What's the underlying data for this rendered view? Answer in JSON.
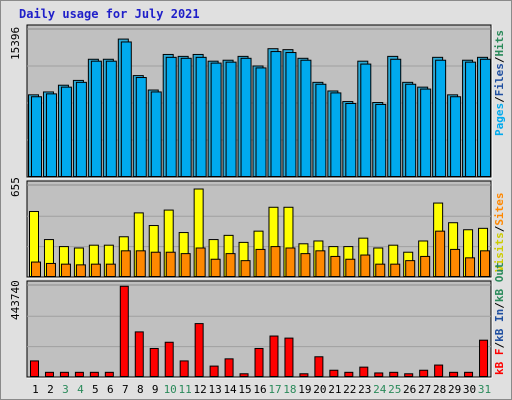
{
  "title": "Daily usage for July 2021",
  "colors": {
    "background": "#e0e0e0",
    "plot_bg": "#c0c0c0",
    "pages": "#00aaee",
    "hits": "#44bbcc",
    "visits": "#ffff00",
    "sites": "#ff8800",
    "kbytes": "#ff0000",
    "weekend_label": "#2a8a5a",
    "weekday_label": "#000000",
    "title": "#1f1fc9"
  },
  "chart_data": [
    {
      "type": "bar",
      "panel": "top",
      "max_label": "15396",
      "ylim": [
        0,
        15396
      ],
      "legend": [
        {
          "text": "Pages",
          "color": "#00aaee"
        },
        {
          "text": "Files",
          "color": "#1f4fa0"
        },
        {
          "text": "Hits",
          "color": "#2a8a5a"
        }
      ],
      "categories": [
        "1",
        "2",
        "3",
        "4",
        "5",
        "6",
        "7",
        "8",
        "9",
        "10",
        "11",
        "12",
        "13",
        "14",
        "15",
        "16",
        "17",
        "18",
        "19",
        "20",
        "21",
        "22",
        "23",
        "24",
        "25",
        "26",
        "27",
        "28",
        "29",
        "30",
        "31"
      ],
      "series": [
        {
          "name": "Hits",
          "values": [
            8600,
            8900,
            9600,
            10100,
            12300,
            12300,
            14400,
            10600,
            9100,
            12800,
            12600,
            12800,
            12100,
            12200,
            12600,
            11600,
            13400,
            13300,
            12400,
            9900,
            9000,
            7900,
            12100,
            7800,
            12600,
            9900,
            9400,
            12500,
            8600,
            12200,
            12500
          ]
        },
        {
          "name": "Pages",
          "values": [
            8400,
            8700,
            9400,
            9900,
            12100,
            12100,
            14100,
            10400,
            8900,
            12500,
            12400,
            12500,
            11900,
            12000,
            12400,
            11400,
            13100,
            13000,
            12200,
            9700,
            8800,
            7700,
            11800,
            7600,
            12300,
            9700,
            9200,
            12200,
            8400,
            12000,
            12300
          ]
        }
      ]
    },
    {
      "type": "bar",
      "panel": "middle",
      "max_label": "655",
      "ylim": [
        0,
        655
      ],
      "legend": [
        {
          "text": "Visits",
          "color": "#cccc00"
        },
        {
          "text": "Sites",
          "color": "#ff8800"
        }
      ],
      "categories": [
        "1",
        "2",
        "3",
        "4",
        "5",
        "6",
        "7",
        "8",
        "9",
        "10",
        "11",
        "12",
        "13",
        "14",
        "15",
        "16",
        "17",
        "18",
        "19",
        "20",
        "21",
        "22",
        "23",
        "24",
        "25",
        "26",
        "27",
        "28",
        "29",
        "30",
        "31"
      ],
      "series": [
        {
          "name": "Visits",
          "values": [
            470,
            270,
            220,
            210,
            230,
            230,
            290,
            460,
            370,
            480,
            320,
            630,
            270,
            300,
            250,
            330,
            500,
            500,
            240,
            260,
            220,
            220,
            280,
            210,
            230,
            180,
            260,
            530,
            390,
            340,
            350
          ]
        },
        {
          "name": "Sites",
          "values": [
            110,
            100,
            95,
            90,
            95,
            95,
            190,
            190,
            180,
            180,
            170,
            210,
            130,
            170,
            120,
            200,
            220,
            210,
            170,
            190,
            150,
            130,
            160,
            95,
            95,
            120,
            150,
            330,
            200,
            140,
            190
          ]
        }
      ]
    },
    {
      "type": "bar",
      "panel": "bottom",
      "max_label": "443740",
      "ylim": [
        0,
        443740
      ],
      "legend": [
        {
          "text": "kB F",
          "color": "#ff0000"
        },
        {
          "text": "kB In",
          "color": "#1f4fa0"
        },
        {
          "text": "kB Out",
          "color": "#2a8a5a"
        }
      ],
      "categories": [
        "1",
        "2",
        "3",
        "4",
        "5",
        "6",
        "7",
        "8",
        "9",
        "10",
        "11",
        "12",
        "13",
        "14",
        "15",
        "16",
        "17",
        "18",
        "19",
        "20",
        "21",
        "22",
        "23",
        "24",
        "25",
        "26",
        "27",
        "28",
        "29",
        "30",
        "31"
      ],
      "series": [
        {
          "name": "kB F",
          "values": [
            80000,
            25000,
            25000,
            25000,
            25000,
            25000,
            440000,
            220000,
            140000,
            170000,
            80000,
            260000,
            55000,
            90000,
            18000,
            140000,
            200000,
            190000,
            18000,
            100000,
            35000,
            25000,
            50000,
            22000,
            25000,
            18000,
            35000,
            60000,
            25000,
            25000,
            180000
          ]
        }
      ]
    }
  ],
  "x_labels": [
    {
      "text": "1",
      "weekend": false
    },
    {
      "text": "2",
      "weekend": false
    },
    {
      "text": "3",
      "weekend": true
    },
    {
      "text": "4",
      "weekend": true
    },
    {
      "text": "5",
      "weekend": false
    },
    {
      "text": "6",
      "weekend": false
    },
    {
      "text": "7",
      "weekend": false
    },
    {
      "text": "8",
      "weekend": false
    },
    {
      "text": "9",
      "weekend": false
    },
    {
      "text": "10",
      "weekend": true
    },
    {
      "text": "11",
      "weekend": true
    },
    {
      "text": "12",
      "weekend": false
    },
    {
      "text": "13",
      "weekend": false
    },
    {
      "text": "14",
      "weekend": false
    },
    {
      "text": "15",
      "weekend": false
    },
    {
      "text": "16",
      "weekend": false
    },
    {
      "text": "17",
      "weekend": true
    },
    {
      "text": "18",
      "weekend": true
    },
    {
      "text": "19",
      "weekend": false
    },
    {
      "text": "20",
      "weekend": false
    },
    {
      "text": "21",
      "weekend": false
    },
    {
      "text": "22",
      "weekend": false
    },
    {
      "text": "23",
      "weekend": false
    },
    {
      "text": "24",
      "weekend": true
    },
    {
      "text": "25",
      "weekend": true
    },
    {
      "text": "26",
      "weekend": false
    },
    {
      "text": "27",
      "weekend": false
    },
    {
      "text": "28",
      "weekend": false
    },
    {
      "text": "29",
      "weekend": false
    },
    {
      "text": "30",
      "weekend": false
    },
    {
      "text": "31",
      "weekend": true
    }
  ]
}
